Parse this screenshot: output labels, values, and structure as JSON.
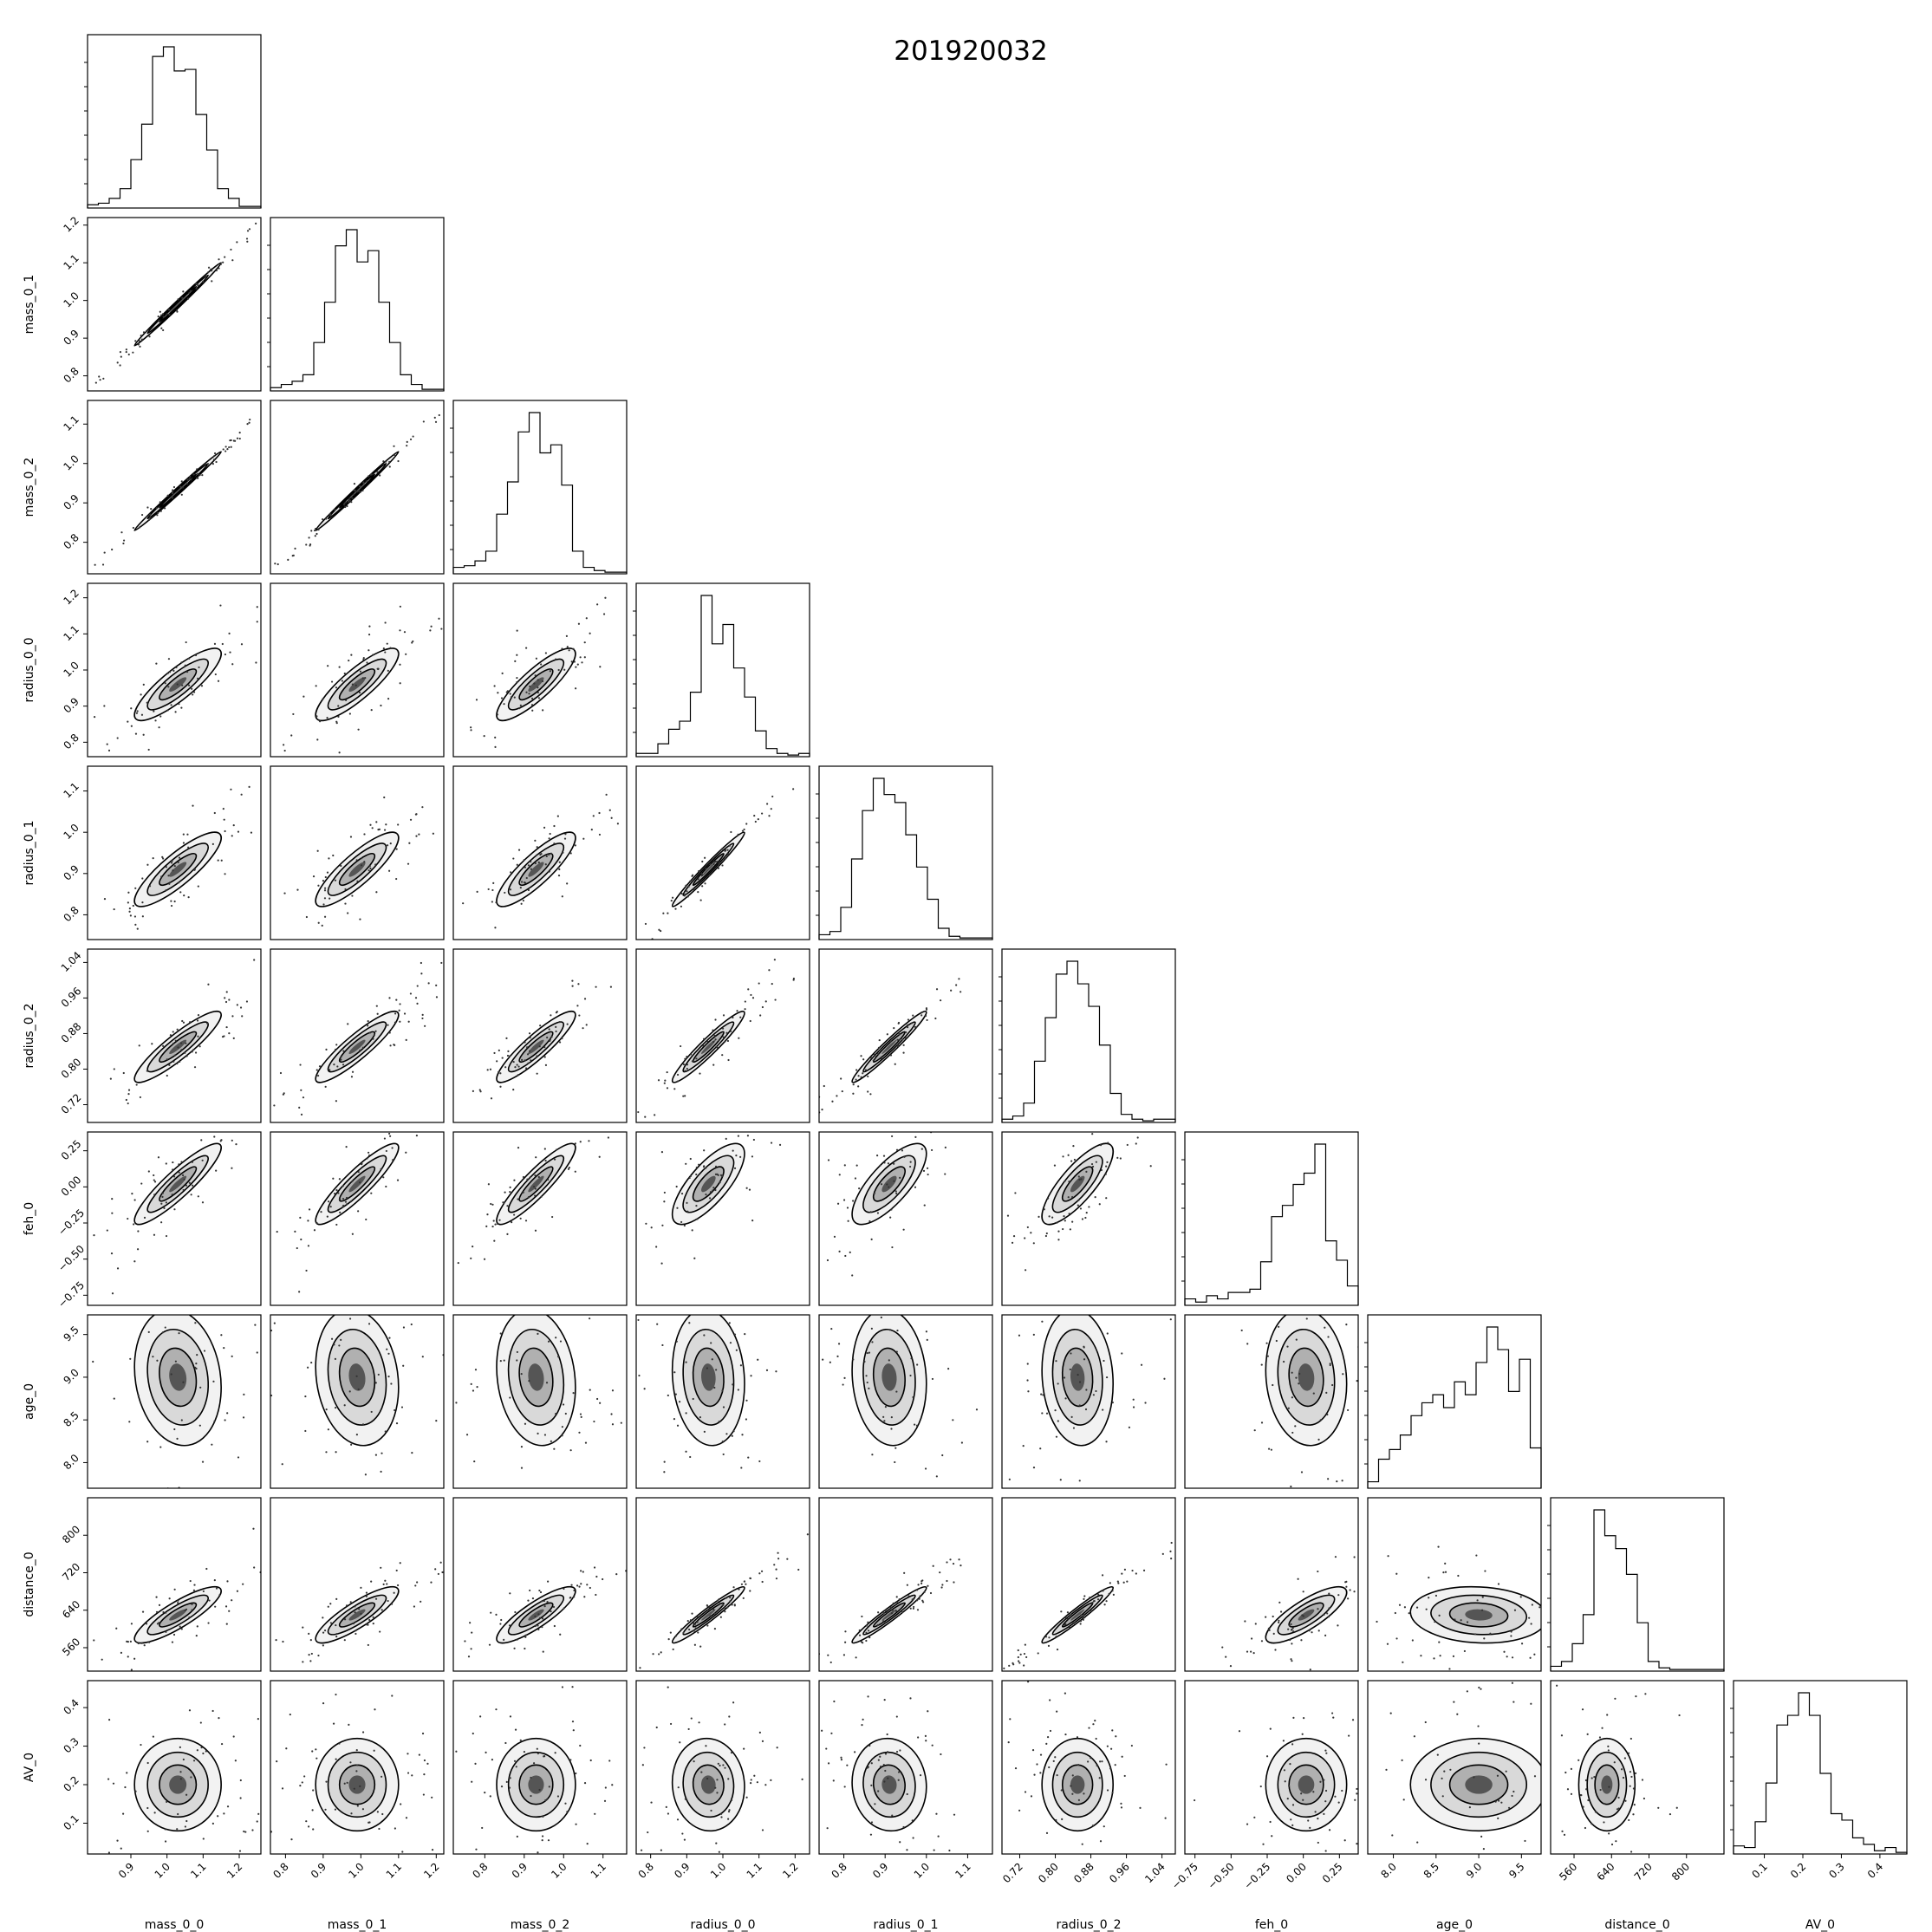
{
  "chart_data": {
    "type": "corner",
    "title": "201920032",
    "parameters": [
      {
        "label": "mass_0_0",
        "range": [
          0.78,
          1.26
        ],
        "ticks": [
          0.9,
          1.0,
          1.1,
          1.2
        ],
        "tick_labels": [
          "0.9",
          "1.0",
          "1.1",
          "1.2"
        ],
        "mean": 1.03,
        "sd": 0.06
      },
      {
        "label": "mass_0_1",
        "range": [
          0.76,
          1.22
        ],
        "ticks": [
          0.8,
          0.9,
          1.0,
          1.1,
          1.2
        ],
        "tick_labels": [
          "0.8",
          "0.9",
          "1.0",
          "1.1",
          "1.2"
        ],
        "mean": 0.99,
        "sd": 0.055
      },
      {
        "label": "mass_0_2",
        "range": [
          0.72,
          1.16
        ],
        "ticks": [
          0.8,
          0.9,
          1.0,
          1.1
        ],
        "tick_labels": [
          "0.8",
          "0.9",
          "1.0",
          "1.1"
        ],
        "mean": 0.93,
        "sd": 0.05
      },
      {
        "label": "radius_0_0",
        "range": [
          0.76,
          1.24
        ],
        "ticks": [
          0.8,
          0.9,
          1.0,
          1.1,
          1.2
        ],
        "tick_labels": [
          "0.8",
          "0.9",
          "1.0",
          "1.1",
          "1.2"
        ],
        "mean": 0.96,
        "sd": 0.05
      },
      {
        "label": "radius_0_1",
        "range": [
          0.74,
          1.16
        ],
        "ticks": [
          0.8,
          0.9,
          1.0,
          1.1
        ],
        "tick_labels": [
          "0.8",
          "0.9",
          "1.0",
          "1.1"
        ],
        "mean": 0.91,
        "sd": 0.045
      },
      {
        "label": "radius_0_2",
        "range": [
          0.68,
          1.07
        ],
        "ticks": [
          0.72,
          0.8,
          0.88,
          0.96,
          1.04
        ],
        "tick_labels": [
          "0.72",
          "0.80",
          "0.88",
          "0.96",
          "1.04"
        ],
        "mean": 0.85,
        "sd": 0.04
      },
      {
        "label": "feh_0",
        "range": [
          -0.82,
          0.38
        ],
        "ticks": [
          -0.75,
          -0.5,
          -0.25,
          0.0,
          0.25
        ],
        "tick_labels": [
          "−0.75",
          "−0.50",
          "−0.25",
          "0.00",
          "0.25"
        ],
        "mean": 0.02,
        "sd": 0.14
      },
      {
        "label": "age_0",
        "range": [
          7.7,
          9.73
        ],
        "ticks": [
          8.0,
          8.5,
          9.0,
          9.5
        ],
        "tick_labels": [
          "8.0",
          "8.5",
          "9.0",
          "9.5"
        ],
        "mean": 9.0,
        "sd": 0.4
      },
      {
        "label": "distance_0",
        "range": [
          510,
          880
        ],
        "ticks": [
          560,
          640,
          720,
          800
        ],
        "tick_labels": [
          "560",
          "640",
          "720",
          "800"
        ],
        "mean": 630,
        "sd": 30
      },
      {
        "label": "AV_0",
        "range": [
          0.02,
          0.47
        ],
        "ticks": [
          0.1,
          0.2,
          0.3,
          0.4
        ],
        "tick_labels": [
          "0.1",
          "0.2",
          "0.3",
          "0.4"
        ],
        "mean": 0.2,
        "sd": 0.06
      }
    ],
    "correlation": [
      [
        1.0,
        0.995,
        0.995,
        0.85,
        0.85,
        0.9,
        0.9,
        -0.15,
        0.85,
        0.0
      ],
      [
        0.995,
        1.0,
        0.995,
        0.85,
        0.85,
        0.9,
        0.9,
        -0.15,
        0.85,
        0.0
      ],
      [
        0.995,
        0.995,
        1.0,
        0.85,
        0.85,
        0.9,
        0.9,
        -0.15,
        0.85,
        0.0
      ],
      [
        0.85,
        0.85,
        0.85,
        1.0,
        0.98,
        0.95,
        0.75,
        -0.1,
        0.96,
        -0.05
      ],
      [
        0.85,
        0.85,
        0.85,
        0.98,
        1.0,
        0.97,
        0.75,
        -0.1,
        0.96,
        -0.05
      ],
      [
        0.9,
        0.9,
        0.9,
        0.95,
        0.97,
        1.0,
        0.8,
        -0.1,
        0.96,
        0.0
      ],
      [
        0.9,
        0.9,
        0.9,
        0.75,
        0.75,
        0.8,
        1.0,
        -0.1,
        0.8,
        0.0
      ],
      [
        -0.15,
        -0.15,
        -0.15,
        -0.1,
        -0.1,
        -0.1,
        -0.1,
        1.0,
        -0.1,
        0.0
      ],
      [
        0.85,
        0.85,
        0.85,
        0.96,
        0.96,
        0.96,
        0.8,
        -0.1,
        1.0,
        0.0
      ],
      [
        0.0,
        0.0,
        0.0,
        -0.05,
        -0.05,
        0.0,
        0.0,
        0.0,
        0.0,
        1.0
      ]
    ],
    "histograms": [
      [
        0.02,
        0.03,
        0.06,
        0.12,
        0.3,
        0.52,
        0.94,
        1.0,
        0.85,
        0.86,
        0.58,
        0.36,
        0.12,
        0.06,
        0.01,
        0.01
      ],
      [
        0.02,
        0.04,
        0.06,
        0.1,
        0.3,
        0.55,
        0.9,
        1.0,
        0.8,
        0.87,
        0.55,
        0.3,
        0.1,
        0.04,
        0.01,
        0.01
      ],
      [
        0.04,
        0.05,
        0.08,
        0.14,
        0.37,
        0.57,
        0.88,
        1.0,
        0.75,
        0.8,
        0.55,
        0.14,
        0.04,
        0.02,
        0.01,
        0.01
      ],
      [
        0.02,
        0.02,
        0.08,
        0.17,
        0.22,
        0.4,
        1.0,
        0.7,
        0.82,
        0.55,
        0.37,
        0.16,
        0.05,
        0.02,
        0.01,
        0.02
      ],
      [
        0.03,
        0.05,
        0.2,
        0.5,
        0.8,
        1.0,
        0.9,
        0.85,
        0.65,
        0.45,
        0.25,
        0.07,
        0.02,
        0.01,
        0.01,
        0.01
      ],
      [
        0.02,
        0.04,
        0.12,
        0.38,
        0.65,
        0.92,
        1.0,
        0.86,
        0.72,
        0.48,
        0.18,
        0.05,
        0.02,
        0.01,
        0.02,
        0.02
      ],
      [
        0.04,
        0.02,
        0.06,
        0.04,
        0.08,
        0.08,
        0.1,
        0.27,
        0.55,
        0.62,
        0.75,
        0.82,
        1.0,
        0.4,
        0.28,
        0.12
      ],
      [
        0.04,
        0.18,
        0.24,
        0.33,
        0.45,
        0.53,
        0.58,
        0.5,
        0.66,
        0.58,
        0.78,
        1.0,
        0.86,
        0.6,
        0.8,
        0.25
      ],
      [
        0.03,
        0.06,
        0.17,
        0.35,
        1.0,
        0.84,
        0.76,
        0.6,
        0.3,
        0.06,
        0.02,
        0.01,
        0.01,
        0.01,
        0.01,
        0.01
      ],
      [
        0.05,
        0.04,
        0.2,
        0.44,
        0.8,
        0.86,
        1.0,
        0.86,
        0.5,
        0.25,
        0.21,
        0.1,
        0.06,
        0.02,
        0.04,
        0.01
      ]
    ]
  }
}
